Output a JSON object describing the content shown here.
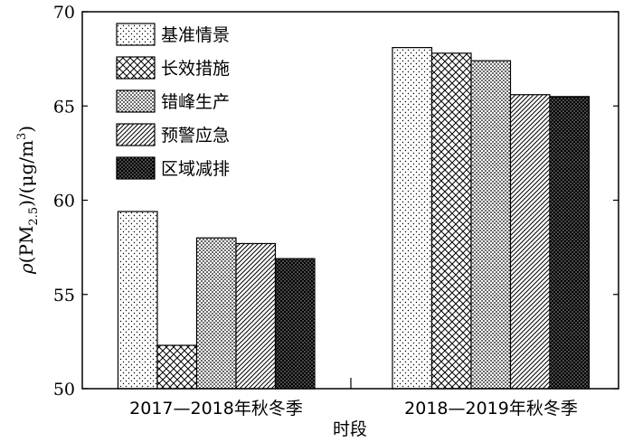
{
  "chart_data": {
    "type": "bar",
    "categories": [
      "2017—2018年秋冬季",
      "2018—2019年秋冬季"
    ],
    "series": [
      {
        "name": "基准情景",
        "values": [
          59.4,
          68.1
        ],
        "pattern": "dots-sparse"
      },
      {
        "name": "长效措施",
        "values": [
          52.3,
          67.8
        ],
        "pattern": "crosshatch"
      },
      {
        "name": "错峰生产",
        "values": [
          58.0,
          67.4
        ],
        "pattern": "dots-dense"
      },
      {
        "name": "预警应急",
        "values": [
          57.7,
          65.6
        ],
        "pattern": "diagonal"
      },
      {
        "name": "区域减排",
        "values": [
          56.9,
          65.5
        ],
        "pattern": "black-dots"
      }
    ],
    "xlabel": "时段",
    "ylabel_parts": {
      "rho": "ρ",
      "open": "(PM",
      "sub": "2.5",
      "mid": ")/(μg/m",
      "sup": "3",
      "close": ")"
    },
    "ylim": [
      50,
      70
    ],
    "yticks": [
      50,
      55,
      60,
      65,
      70
    ],
    "legend_position": "top-left",
    "grid": false
  }
}
